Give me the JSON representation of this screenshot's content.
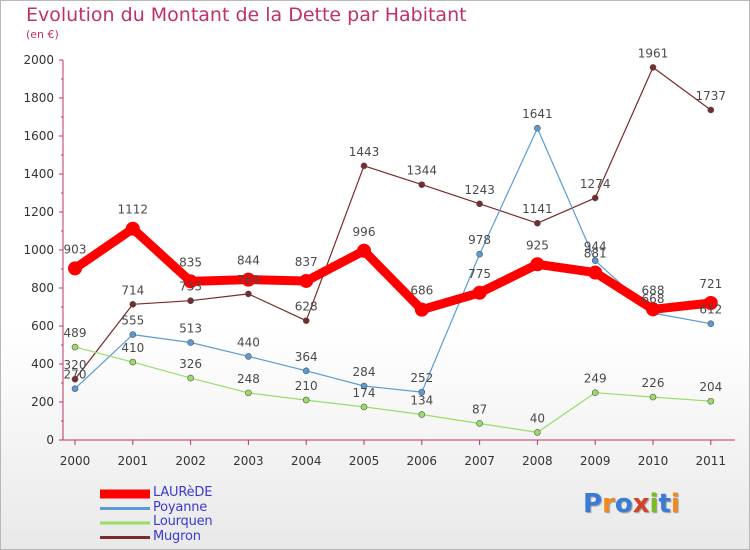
{
  "title": "Evolution du Montant de la Dette par Habitant",
  "subtitle": "(en €)",
  "logo": "Proxiti",
  "chart_data": {
    "type": "line",
    "title": "Evolution du Montant de la Dette par Habitant",
    "subtitle": "(en €)",
    "xlabel": "",
    "ylabel": "",
    "categories": [
      "2000",
      "2001",
      "2002",
      "2003",
      "2004",
      "2005",
      "2006",
      "2007",
      "2008",
      "2009",
      "2010",
      "2011"
    ],
    "yticks": [
      "0",
      "200",
      "400",
      "600",
      "800",
      "1000",
      "1200",
      "1400",
      "1600",
      "1800",
      "2000"
    ],
    "ylim": [
      0,
      2000
    ],
    "grid": false,
    "legend_position": "bottom-left",
    "series": [
      {
        "name": "LAURèDE",
        "color": "#ff0000",
        "values": [
          903,
          1112,
          835,
          844,
          837,
          996,
          686,
          775,
          925,
          881,
          688,
          721
        ]
      },
      {
        "name": "Poyanne",
        "color": "#5b9bd5",
        "values": [
          270,
          555,
          513,
          440,
          364,
          284,
          252,
          978,
          1641,
          944,
          668,
          612
        ]
      },
      {
        "name": "Lourquen",
        "color": "#99dd66",
        "values": [
          489,
          410,
          326,
          248,
          210,
          174,
          134,
          87,
          40,
          249,
          226,
          204
        ]
      },
      {
        "name": "Mugron",
        "color": "#7a2a2a",
        "values": [
          320,
          714,
          733,
          769,
          628,
          1443,
          1344,
          1243,
          1141,
          1274,
          1961,
          1737
        ]
      }
    ],
    "data_labels": [
      {
        "series": 0,
        "labels": [
          "903",
          "1112",
          "835",
          "844",
          "837",
          "996",
          "686",
          "775",
          "925",
          "881",
          "688",
          "721"
        ]
      },
      {
        "series": 1,
        "labels": [
          "270",
          "555",
          "513",
          "440",
          "364",
          "284",
          "252",
          "978",
          "1641",
          "944",
          "668",
          "612"
        ]
      },
      {
        "series": 2,
        "labels": [
          "489",
          "410",
          "326",
          "248",
          "210",
          "174",
          "134",
          "87",
          "40",
          "249",
          "226",
          "204"
        ]
      },
      {
        "series": 3,
        "labels": [
          "320",
          "714",
          "733",
          "769",
          "628",
          "1443",
          "1344",
          "1243",
          "1141",
          "1274",
          "1961",
          "1737"
        ]
      }
    ]
  }
}
